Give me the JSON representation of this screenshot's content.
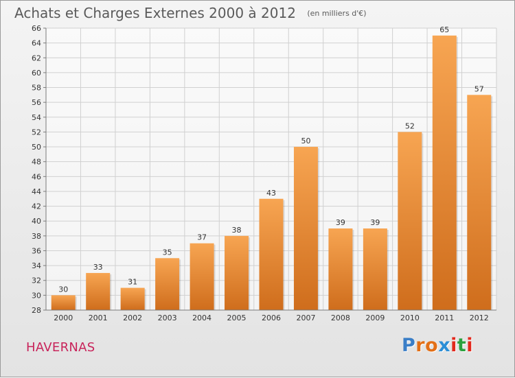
{
  "title": "Achats et Charges Externes 2000 à 2012",
  "unit": "(en milliers d'€)",
  "place": "HAVERNAS",
  "brand": {
    "text": "Proxiti",
    "letters": [
      "P",
      "r",
      "o",
      "x",
      "i",
      "t",
      "i"
    ],
    "colors": [
      "#3a7ec7",
      "#e36f16",
      "#e36f16",
      "#2b8ed6",
      "#e2291d",
      "#2aa13e",
      "#e2291d"
    ]
  },
  "colors": {
    "bar_light": "#f7a552",
    "bar_dark": "#cf6d1c",
    "axis": "#7a7a7a",
    "grid": "#d0d0d0",
    "text": "#333333",
    "place": "#c8235a"
  },
  "chart_data": {
    "type": "bar",
    "title": "Achats et Charges Externes 2000 à 2012",
    "subtitle": "(en milliers d'€)",
    "categories": [
      "2000",
      "2001",
      "2002",
      "2003",
      "2004",
      "2005",
      "2006",
      "2007",
      "2008",
      "2009",
      "2010",
      "2011",
      "2012"
    ],
    "values": [
      30,
      33,
      31,
      35,
      37,
      38,
      43,
      50,
      39,
      39,
      52,
      65,
      57
    ],
    "ylim": [
      28,
      66
    ],
    "yticks": [
      28,
      30,
      32,
      34,
      36,
      38,
      40,
      42,
      44,
      46,
      48,
      50,
      52,
      54,
      56,
      58,
      60,
      62,
      64,
      66
    ],
    "grid": true,
    "data_labels": true,
    "legend": "none"
  }
}
